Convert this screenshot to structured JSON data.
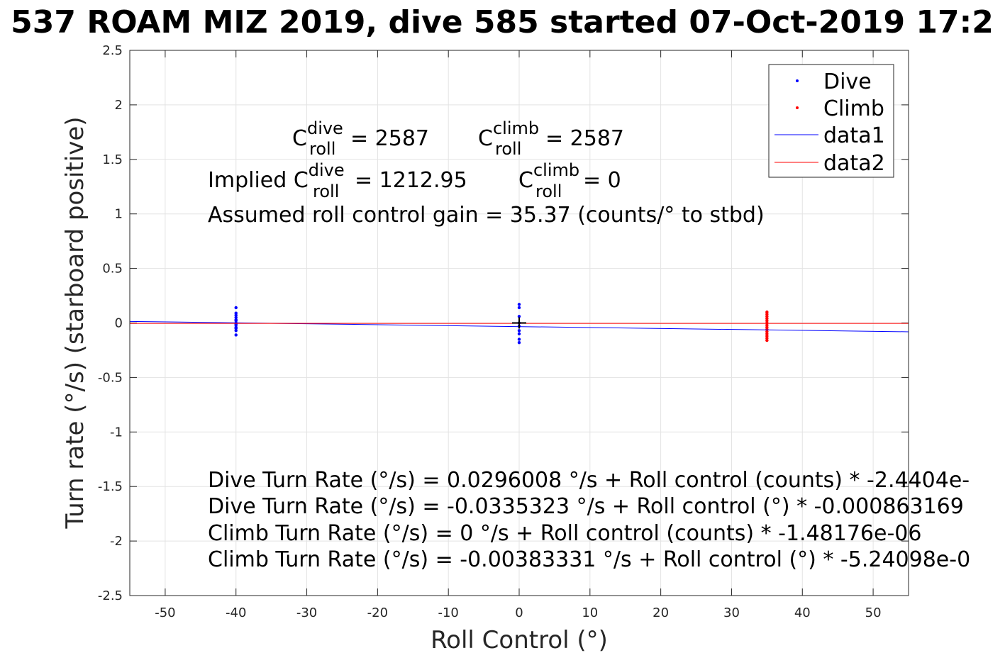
{
  "chart_data": {
    "type": "scatter",
    "title": "537 ROAM MIZ 2019, dive 585 started 07-Oct-2019 17:2",
    "xlabel": "Roll Control (°)",
    "ylabel": "Turn rate (°/s) (starboard positive)",
    "xlim": [
      -55,
      55
    ],
    "ylim": [
      -2.5,
      2.5
    ],
    "xticks": [
      -50,
      -40,
      -30,
      -20,
      -10,
      0,
      10,
      20,
      30,
      40,
      50
    ],
    "yticks": [
      2.5,
      2,
      1.5,
      1,
      0.5,
      0,
      -0.5,
      -1,
      -1.5,
      -2,
      -2.5
    ],
    "xtick_labels": [
      "-50",
      "-40",
      "-30",
      "-20",
      "-10",
      "0",
      "10",
      "20",
      "30",
      "40",
      "50"
    ],
    "ytick_labels": [
      "2.5",
      "2",
      "1.5",
      "1",
      "0.5",
      "0",
      "-0.5",
      "-1",
      "-1.5",
      "-2",
      "-2.5"
    ],
    "grid": true,
    "legend_position": "top-right",
    "legend": [
      {
        "label": "Dive",
        "kind": "marker",
        "color": "#0000ff"
      },
      {
        "label": "Climb",
        "kind": "marker",
        "color": "#ff0000"
      },
      {
        "label": "data1",
        "kind": "line",
        "color": "#0000ff"
      },
      {
        "label": "data2",
        "kind": "line",
        "color": "#ff0000"
      }
    ],
    "series": [
      {
        "name": "Dive",
        "kind": "scatter",
        "color": "#0000ff",
        "points": [
          [
            -40,
            0.14
          ],
          [
            -40,
            0.09
          ],
          [
            -40,
            0.07
          ],
          [
            -40,
            0.05
          ],
          [
            -40,
            0.03
          ],
          [
            -40,
            0.02
          ],
          [
            -40,
            0.0
          ],
          [
            -40,
            -0.01
          ],
          [
            -40,
            -0.02
          ],
          [
            -40,
            -0.04
          ],
          [
            -40,
            -0.05
          ],
          [
            -40,
            -0.07
          ],
          [
            -40,
            -0.11
          ],
          [
            0,
            0.17
          ],
          [
            0,
            0.14
          ],
          [
            0,
            0.06
          ],
          [
            0,
            0.0
          ],
          [
            0,
            -0.03
          ],
          [
            0,
            -0.07
          ],
          [
            0,
            -0.1
          ],
          [
            0,
            -0.15
          ],
          [
            0,
            -0.18
          ]
        ]
      },
      {
        "name": "Climb",
        "kind": "scatter",
        "color": "#ff0000",
        "points": [
          [
            35,
            0.1
          ],
          [
            35,
            0.08
          ],
          [
            35,
            0.06
          ],
          [
            35,
            0.04
          ],
          [
            35,
            0.02
          ],
          [
            35,
            0.0
          ],
          [
            35,
            -0.02
          ],
          [
            35,
            -0.04
          ],
          [
            35,
            -0.06
          ],
          [
            35,
            -0.08
          ],
          [
            35,
            -0.1
          ],
          [
            35,
            -0.12
          ],
          [
            35,
            -0.14
          ],
          [
            35,
            -0.16
          ]
        ]
      },
      {
        "name": "data1",
        "kind": "line",
        "color": "#0000ff",
        "points": [
          [
            -55,
            0.014
          ],
          [
            55,
            -0.081
          ]
        ]
      },
      {
        "name": "data2",
        "kind": "line",
        "color": "#ff0000",
        "points": [
          [
            -55,
            -0.0038
          ],
          [
            55,
            -0.0038
          ]
        ]
      }
    ],
    "marker": {
      "x": 0,
      "y": 0,
      "color": "#000000"
    },
    "annotations": {
      "line1": {
        "c_dive_base": "C",
        "c_dive_sup": "dive",
        "c_dive_sub": "roll",
        "c_dive_value": " = 2587",
        "c_climb_base": "C",
        "c_climb_sup": "climb",
        "c_climb_sub": "roll",
        "c_climb_value": " = 2587"
      },
      "line2": {
        "prefix": "Implied C",
        "dive_sup": "dive",
        "dive_sub": "roll",
        "dive_value": " = 1212.95",
        "climb_base": "C",
        "climb_sup": "climb",
        "climb_sub": "roll",
        "climb_value": " = 0"
      },
      "gain": "Assumed roll control gain = 35.37 (counts/° to stbd)",
      "fits": [
        "Dive Turn Rate (°/s) = 0.0296008 °/s + Roll control (counts) * -2.4404e-",
        "Dive Turn Rate (°/s) = -0.0335323 °/s + Roll control (°) * -0.000863169",
        "Climb Turn Rate (°/s) = 0 °/s + Roll control (counts) * -1.48176e-06",
        "Climb Turn Rate (°/s) = -0.00383331 °/s + Roll control (°) * -5.24098e-0"
      ]
    }
  }
}
